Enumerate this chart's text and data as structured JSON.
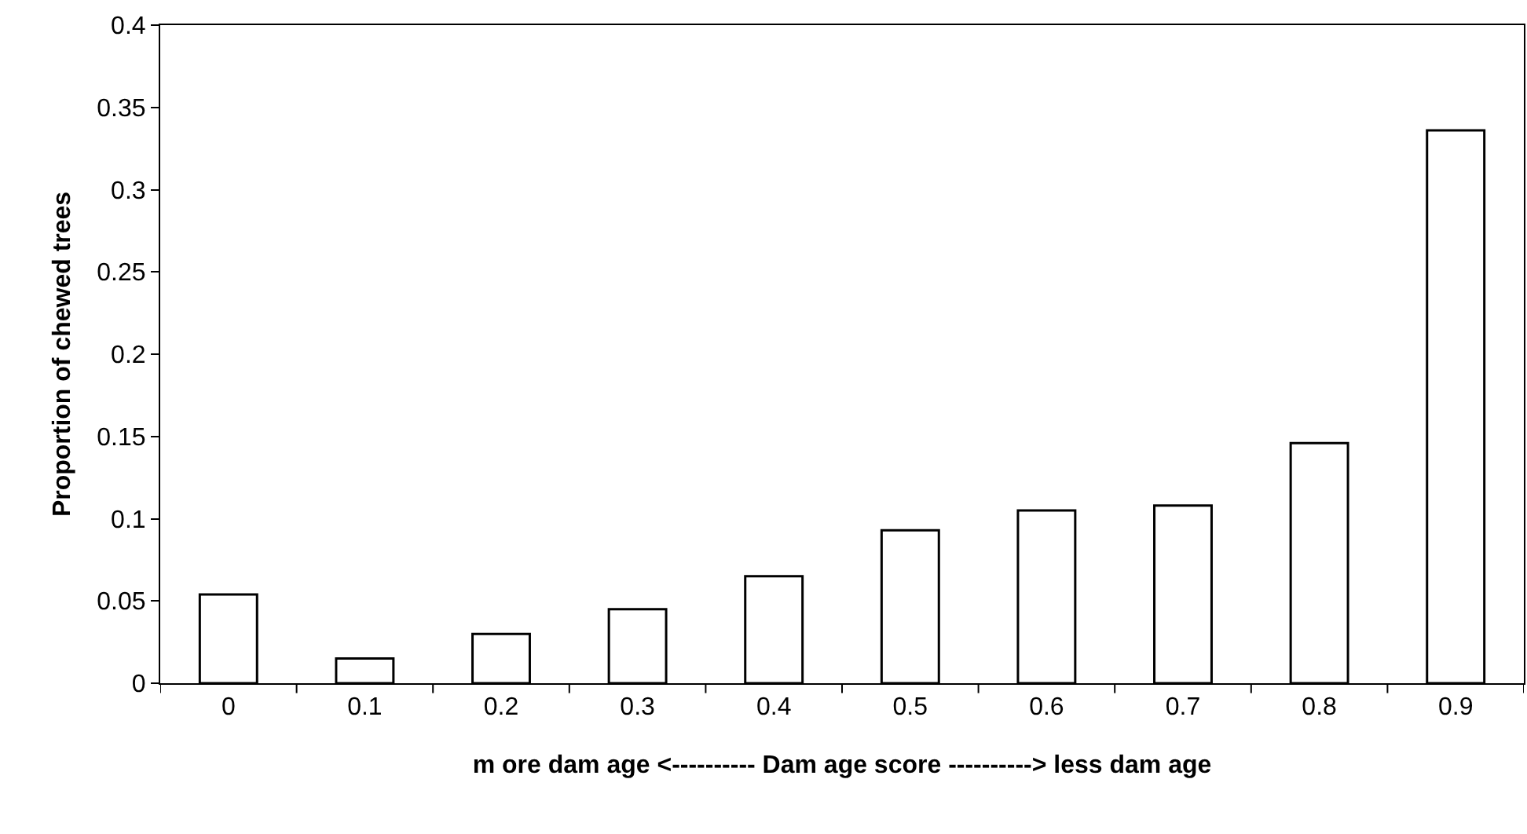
{
  "chart_data": {
    "type": "bar",
    "xlabel": "m ore dam age <---------- Dam age score ----------> less dam age",
    "ylabel": "Proportion of chewed trees",
    "categories": [
      "0",
      "0.1",
      "0.2",
      "0.3",
      "0.4",
      "0.5",
      "0.6",
      "0.7",
      "0.8",
      "0.9"
    ],
    "values": [
      0.054,
      0.015,
      0.03,
      0.045,
      0.065,
      0.093,
      0.105,
      0.108,
      0.146,
      0.336
    ],
    "color": "#ffffff",
    "ylim": [
      0,
      0.4
    ],
    "yticks": [
      0,
      0.05,
      0.1,
      0.15,
      0.2,
      0.25,
      0.3,
      0.35,
      0.4
    ],
    "grid": false,
    "legend": false
  }
}
